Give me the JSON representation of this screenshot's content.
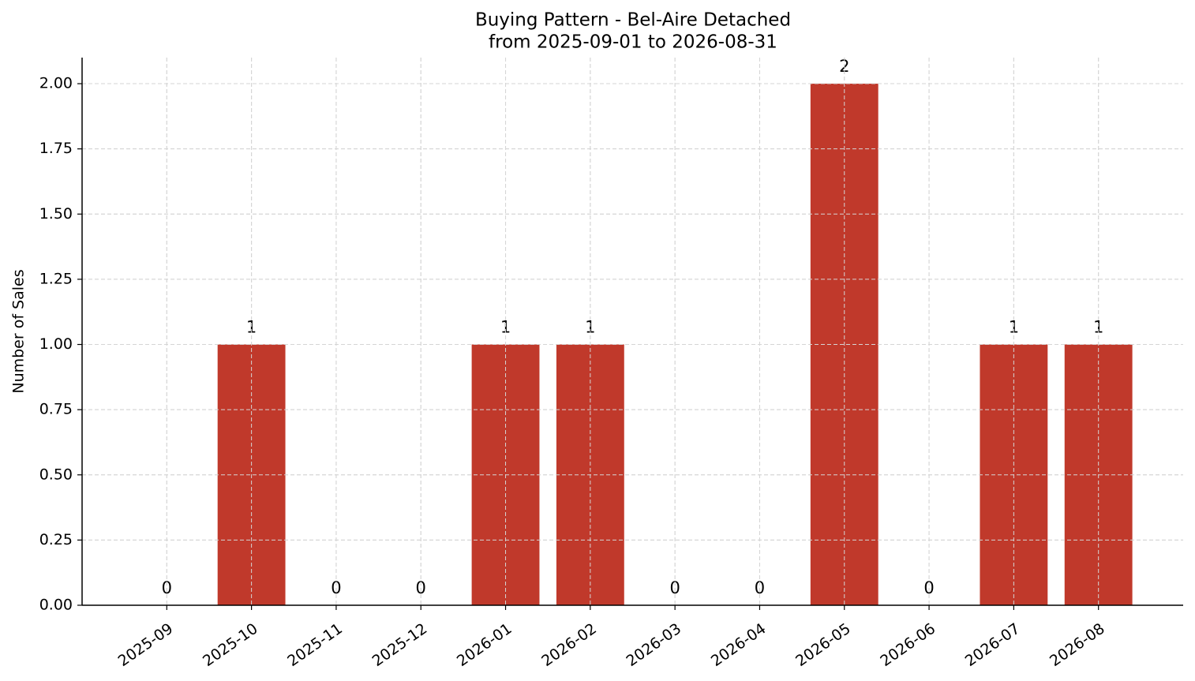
{
  "chart_data": {
    "type": "bar",
    "title": "Buying Pattern - Bel-Aire Detached",
    "subtitle": "from 2025-09-01 to 2026-08-31",
    "y_label": "Number of Sales",
    "categories": [
      "2025-09",
      "2025-10",
      "2025-11",
      "2025-12",
      "2026-01",
      "2026-02",
      "2026-03",
      "2026-04",
      "2026-05",
      "2026-06",
      "2026-07",
      "2026-08"
    ],
    "values": [
      0,
      1,
      0,
      0,
      1,
      1,
      0,
      0,
      2,
      0,
      1,
      1
    ],
    "color": "#c0392b",
    "ylim": [
      0,
      2.1
    ],
    "yticks": [
      {
        "value": 0,
        "label": "0.00"
      },
      {
        "value": 0.25,
        "label": "0.25"
      },
      {
        "value": 0.5,
        "label": "0.50"
      },
      {
        "value": 0.75,
        "label": "0.75"
      },
      {
        "value": 1,
        "label": "1.00"
      },
      {
        "value": 1.25,
        "label": "1.25"
      },
      {
        "value": 1.5,
        "label": "1.50"
      },
      {
        "value": 1.75,
        "label": "1.75"
      },
      {
        "value": 2,
        "label": "2.00"
      }
    ],
    "grid": true
  }
}
